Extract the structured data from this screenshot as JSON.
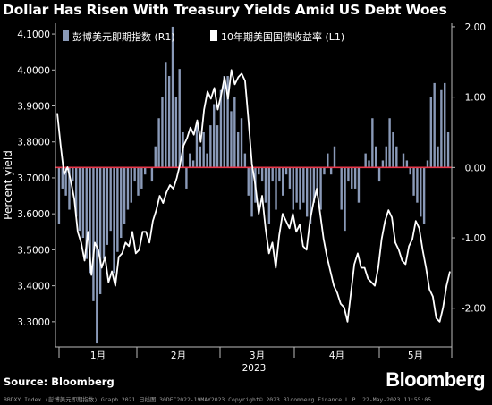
{
  "title": "Dollar Has Risen With Treasury Yields Amid US Debt Woes",
  "source": "Source: Bloomberg",
  "brand": "Bloomberg",
  "footer": "BBDXY Index (彭博美元即期指数) Graph 2021  日线图  30DEC2022-19MAY2023  Copyright© 2023 Bloomberg Finance L.P.  22-May-2023 11:55:05",
  "chart_data": {
    "type": "bar+line",
    "ylabel": "Percent yield",
    "xlabel": "2023",
    "x_ticks": [
      "1月",
      "2月",
      "3月",
      "4月",
      "5月"
    ],
    "left_axis": {
      "ticks": [
        "4.1000",
        "4.0000",
        "3.9000",
        "3.8000",
        "3.7000",
        "3.6000",
        "3.5000",
        "3.4000",
        "3.3000"
      ],
      "range": [
        3.23,
        4.13
      ]
    },
    "right_axis": {
      "ticks": [
        "2.00",
        "1.00",
        "0.00",
        "-1.00",
        "-2.00"
      ],
      "range": [
        -2.55,
        2.05
      ]
    },
    "zero_line_color": "#e8374a",
    "bar_color": "#8a9ab8",
    "line_color": "#ffffff",
    "legend": [
      {
        "label": "彭博美元即期指数  (R1)",
        "color": "#8a9ab8",
        "kind": "bar"
      },
      {
        "label": "10年期美国国债收益率  (L1)",
        "color": "#ffffff",
        "kind": "line"
      }
    ],
    "series": [
      {
        "name": "彭博美元即期指数  (R1)",
        "axis": "right",
        "values": [
          -0.8,
          -0.3,
          -0.4,
          -0.6,
          -0.2,
          -0.7,
          -0.9,
          -1.0,
          -1.3,
          -1.5,
          -1.9,
          -2.5,
          -1.8,
          -1.3,
          -1.1,
          -0.9,
          -1.5,
          -1.2,
          -1.0,
          -0.8,
          -0.6,
          -0.5,
          -0.2,
          -0.4,
          -0.3,
          -0.1,
          0.0,
          -0.2,
          0.3,
          0.7,
          1.0,
          1.5,
          1.3,
          2.0,
          1.0,
          1.4,
          0.5,
          -0.3,
          0.2,
          0.1,
          0.6,
          0.3,
          0.5,
          0.2,
          0.6,
          0.9,
          0.6,
          1.1,
          1.3,
          1.3,
          0.8,
          1.0,
          0.5,
          0.7,
          0.2,
          -0.4,
          -0.7,
          -0.5,
          -0.1,
          -0.2,
          -0.5,
          -0.8,
          -0.2,
          -0.6,
          -0.2,
          -0.4,
          -0.1,
          -0.3,
          -0.6,
          -0.5,
          -0.6,
          -0.5,
          -0.7,
          -0.8,
          -0.5,
          -0.4,
          -0.6,
          -0.1,
          0.2,
          -0.1,
          0.3,
          0.0,
          -0.6,
          -0.9,
          -0.2,
          -0.3,
          -0.3,
          -0.5,
          0.0,
          0.2,
          0.1,
          0.7,
          0.3,
          -0.2,
          0.1,
          0.3,
          0.7,
          0.5,
          0.3,
          0.0,
          0.2,
          0.1,
          -0.1,
          -0.4,
          -0.5,
          -0.7,
          -0.8,
          0.1,
          1.0,
          1.2,
          0.3,
          1.1,
          1.2,
          0.5
        ]
      },
      {
        "name": "10年期美国国债收益率  (L1)",
        "axis": "left",
        "values": [
          3.88,
          3.79,
          3.71,
          3.73,
          3.69,
          3.64,
          3.55,
          3.52,
          3.47,
          3.55,
          3.43,
          3.52,
          3.5,
          3.45,
          3.48,
          3.41,
          3.44,
          3.4,
          3.48,
          3.49,
          3.52,
          3.51,
          3.55,
          3.49,
          3.5,
          3.55,
          3.55,
          3.52,
          3.58,
          3.61,
          3.65,
          3.63,
          3.66,
          3.68,
          3.67,
          3.7,
          3.74,
          3.79,
          3.81,
          3.84,
          3.82,
          3.86,
          3.8,
          3.89,
          3.94,
          3.92,
          3.95,
          3.89,
          3.93,
          3.98,
          3.92,
          4.0,
          3.96,
          3.98,
          3.99,
          3.97,
          3.86,
          3.74,
          3.68,
          3.6,
          3.65,
          3.56,
          3.49,
          3.52,
          3.45,
          3.54,
          3.6,
          3.58,
          3.56,
          3.6,
          3.55,
          3.57,
          3.51,
          3.5,
          3.58,
          3.63,
          3.67,
          3.6,
          3.53,
          3.48,
          3.44,
          3.4,
          3.38,
          3.35,
          3.34,
          3.3,
          3.38,
          3.46,
          3.49,
          3.45,
          3.45,
          3.42,
          3.41,
          3.4,
          3.45,
          3.53,
          3.58,
          3.61,
          3.59,
          3.52,
          3.5,
          3.47,
          3.46,
          3.51,
          3.53,
          3.58,
          3.56,
          3.5,
          3.45,
          3.39,
          3.37,
          3.31,
          3.3,
          3.34,
          3.4,
          3.44
        ]
      }
    ]
  }
}
